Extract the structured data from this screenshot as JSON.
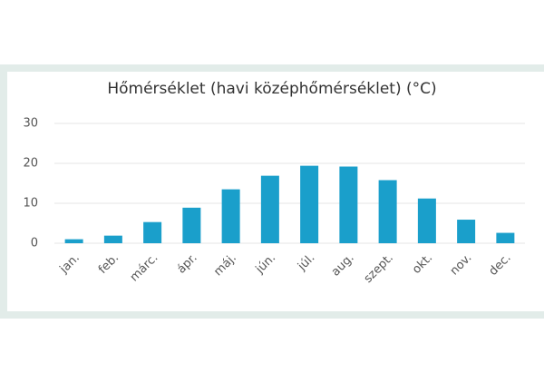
{
  "chart_data": {
    "type": "bar",
    "title": "Hőmérséklet (havi középhőmérséklet) (°C)",
    "categories": [
      "jan.",
      "feb.",
      "márc.",
      "ápr.",
      "máj.",
      "jún.",
      "júl.",
      "aug.",
      "szept.",
      "okt.",
      "nov.",
      "dec."
    ],
    "values": [
      1.0,
      1.9,
      5.3,
      8.9,
      13.5,
      16.9,
      19.4,
      19.2,
      15.8,
      11.2,
      5.9,
      2.6
    ],
    "color": "#1a9fcb",
    "ylim": [
      0,
      30
    ],
    "yticks": [
      0,
      10,
      20,
      30
    ],
    "grid": true
  }
}
